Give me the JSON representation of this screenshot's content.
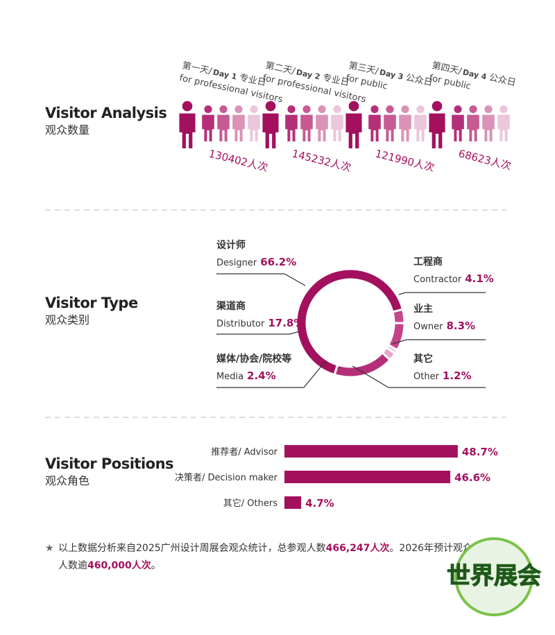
{
  "analysis": {
    "title": "Visitor Analysis",
    "subtitle": "观众数量",
    "days": [
      {
        "cn": "第一天/",
        "day": "Day 1",
        "kind": "专业日",
        "en": "for professional visitors",
        "count": "130402人次"
      },
      {
        "cn": "第二天/",
        "day": "Day 2",
        "kind": "专业日",
        "en": "for professional visitors",
        "count": "145232人次"
      },
      {
        "cn": "第三天/",
        "day": "Day 3",
        "kind": "公众日",
        "en": "for public",
        "count": "121990人次"
      },
      {
        "cn": "第四天/",
        "day": "Day 4",
        "kind": "公众日",
        "en": "for public",
        "count": "68623人次"
      }
    ]
  },
  "chart_data": [
    {
      "type": "donut",
      "title": "Visitor Type",
      "subtitle": "观众类别",
      "labels_cn": [
        "设计师",
        "工程商",
        "业主",
        "其它",
        "媒体/协会/院校等",
        "渠道商"
      ],
      "categories": [
        "Designer",
        "Contractor",
        "Owner",
        "Other",
        "Media",
        "Distributor"
      ],
      "values": [
        66.2,
        4.1,
        8.3,
        1.2,
        2.4,
        17.8
      ],
      "value_labels": [
        "66.2%",
        "4.1%",
        "8.3%",
        "1.2%",
        "2.4%",
        "17.8%"
      ],
      "colors": [
        "#a3105e",
        "#c24a88",
        "#c5418a",
        "#f1c8dc",
        "#e7a5c7",
        "#b42f77"
      ]
    },
    {
      "type": "hbar",
      "title": "Visitor Positions",
      "subtitle": "观众角色",
      "categories": [
        "推荐者/ Advisor",
        "决策者/ Decision maker",
        "其它/ Others"
      ],
      "values": [
        48.7,
        46.6,
        4.7
      ],
      "value_labels": [
        "48.7%",
        "46.6%",
        "4.7%"
      ],
      "color": "#a3105e"
    }
  ],
  "footnote": {
    "star": "★",
    "text1": "以上数据分析来自2025广州设计周展会观众统计，总参观人数",
    "total": "466,247人次",
    "text2": "。2026年预计观众",
    "text3": "人数逾",
    "expected": "460,000人次",
    "text4": "。"
  },
  "watermark": "世界展会"
}
